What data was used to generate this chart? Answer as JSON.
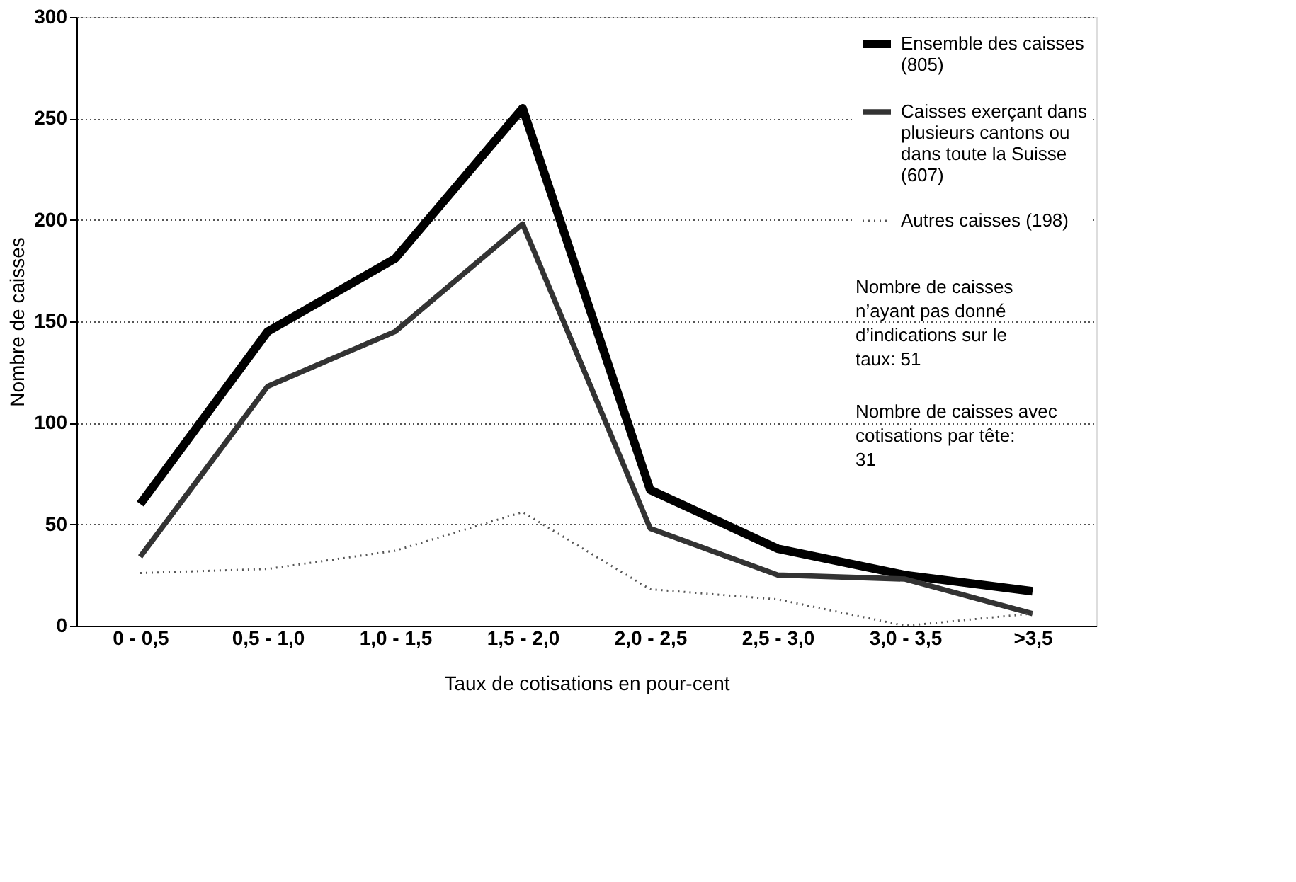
{
  "chart_data": {
    "type": "line",
    "xlabel": "Taux de cotisations en pour-cent",
    "ylabel": "Nombre de caisses",
    "categories": [
      "0 - 0,5",
      "0,5 - 1,0",
      "1,0 - 1,5",
      "1,5 - 2,0",
      "2,0 - 2,5",
      "2,5 - 3,0",
      "3,0 - 3,5",
      ">3,5"
    ],
    "series": [
      {
        "name": "Ensemble des caisses (805)",
        "color": "#000000",
        "line_style": "solid",
        "values": [
          60,
          145,
          181,
          255,
          67,
          38,
          25,
          17
        ]
      },
      {
        "name": "Caisses exerçant dans plusieurs cantons ou dans toute la Suisse (607)",
        "color": "#333333",
        "line_style": "solid",
        "values": [
          34,
          118,
          145,
          198,
          48,
          25,
          23,
          6
        ]
      },
      {
        "name": "Autres caisses (198)",
        "color": "#555555",
        "line_style": "dotted",
        "values": [
          26,
          28,
          37,
          56,
          18,
          13,
          0,
          6
        ]
      }
    ],
    "ylim": [
      0,
      300
    ],
    "yticks": [
      0,
      50,
      100,
      150,
      200,
      250,
      300
    ],
    "grid": "y",
    "legend": "top right",
    "marker": "none",
    "annotations": [
      "Nombre de caisses n’ayant pas donné d’indications sur le taux: 51",
      "Nombre de caisses avec cotisations par tête: 31"
    ]
  }
}
